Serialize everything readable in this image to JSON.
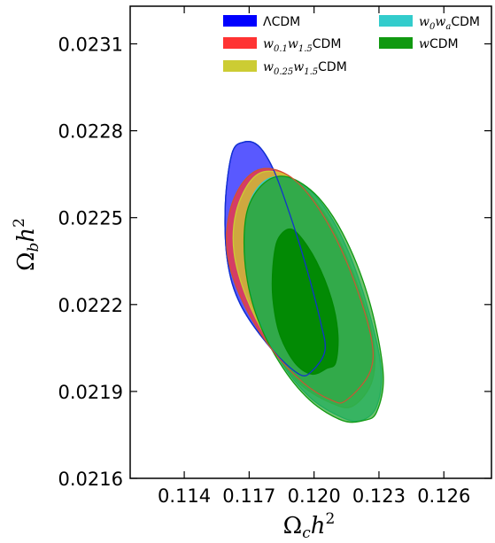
{
  "chart_data": {
    "type": "contour",
    "xlabel": {
      "main": "Ω",
      "sub": "c",
      "tail": "h",
      "sup": "2"
    },
    "ylabel": {
      "main": "Ω",
      "sub": "b",
      "tail": "h",
      "sup": "2"
    },
    "xlim": [
      0.1115,
      0.1282
    ],
    "ylim": [
      0.0216,
      0.02323
    ],
    "xticks": [
      {
        "value": 0.114,
        "label": "0.114"
      },
      {
        "value": 0.117,
        "label": "0.117"
      },
      {
        "value": 0.12,
        "label": "0.120"
      },
      {
        "value": 0.123,
        "label": "0.123"
      },
      {
        "value": 0.126,
        "label": "0.126"
      }
    ],
    "yticks": [
      {
        "value": 0.0216,
        "label": "0.0216"
      },
      {
        "value": 0.0219,
        "label": "0.0219"
      },
      {
        "value": 0.0222,
        "label": "0.0222"
      },
      {
        "value": 0.0225,
        "label": "0.0225"
      },
      {
        "value": 0.0228,
        "label": "0.0228"
      },
      {
        "value": 0.0231,
        "label": "0.0231"
      }
    ],
    "grid": false,
    "legend_location": "top-right",
    "legend": [
      {
        "key": "lcdm",
        "parts": [
          {
            "t": "ΛCDM",
            "m": false
          }
        ],
        "color": "#0000ff"
      },
      {
        "key": "w01w15",
        "parts": [
          {
            "t": "w",
            "m": true
          },
          {
            "t": "0.1",
            "m": true,
            "sub": true
          },
          {
            "t": "w",
            "m": true
          },
          {
            "t": "1.5",
            "m": true,
            "sub": true
          },
          {
            "t": "CDM",
            "m": false
          }
        ],
        "color": "#ff3333"
      },
      {
        "key": "w025w15",
        "parts": [
          {
            "t": "w",
            "m": true
          },
          {
            "t": "0.25",
            "m": true,
            "sub": true
          },
          {
            "t": "w",
            "m": true
          },
          {
            "t": "1.5",
            "m": true,
            "sub": true
          },
          {
            "t": "CDM",
            "m": false
          }
        ],
        "color": "#cccc33"
      },
      {
        "key": "w0wa",
        "parts": [
          {
            "t": "w",
            "m": true
          },
          {
            "t": "0",
            "m": true,
            "sub": true
          },
          {
            "t": "w",
            "m": true
          },
          {
            "t": "a",
            "m": true,
            "sub": true
          },
          {
            "t": "CDM",
            "m": false
          }
        ],
        "color": "#33cccc"
      },
      {
        "key": "wcdm",
        "parts": [
          {
            "t": "w",
            "m": true
          },
          {
            "t": "CDM",
            "m": false
          }
        ],
        "color": "#119911"
      }
    ],
    "series": [
      {
        "key": "lcdm",
        "name": "ΛCDM",
        "color": "#0000ff",
        "opacity": 0.65,
        "contour": [
          [
            0.1199,
            0.02197
          ],
          [
            0.1193,
            0.02196
          ],
          [
            0.118,
            0.02205
          ],
          [
            0.1166,
            0.0222
          ],
          [
            0.116,
            0.02235
          ],
          [
            0.1159,
            0.02255
          ],
          [
            0.1162,
            0.02272
          ],
          [
            0.1167,
            0.02276
          ],
          [
            0.1174,
            0.02275
          ],
          [
            0.1181,
            0.02267
          ],
          [
            0.1188,
            0.02253
          ],
          [
            0.1196,
            0.02234
          ],
          [
            0.1203,
            0.02214
          ],
          [
            0.1205,
            0.02204
          ]
        ]
      },
      {
        "key": "w01w15",
        "name": "w0.1w1.5CDM",
        "color": "#ff3333",
        "opacity": 0.75,
        "contour": [
          [
            0.1215,
            0.02187
          ],
          [
            0.1208,
            0.02187
          ],
          [
            0.1195,
            0.02193
          ],
          [
            0.118,
            0.02205
          ],
          [
            0.1167,
            0.02221
          ],
          [
            0.116,
            0.02237
          ],
          [
            0.1161,
            0.02252
          ],
          [
            0.1168,
            0.02263
          ],
          [
            0.1178,
            0.02267
          ],
          [
            0.1191,
            0.02263
          ],
          [
            0.1204,
            0.02251
          ],
          [
            0.1216,
            0.02233
          ],
          [
            0.1226,
            0.0221
          ],
          [
            0.1226,
            0.02197
          ]
        ]
      },
      {
        "key": "w025w15",
        "name": "w0.25w1.5CDM",
        "color": "#cccc33",
        "opacity": 0.75,
        "contour": [
          [
            0.1218,
            0.02185
          ],
          [
            0.1208,
            0.02186
          ],
          [
            0.1193,
            0.02193
          ],
          [
            0.118,
            0.02206
          ],
          [
            0.1169,
            0.02222
          ],
          [
            0.1163,
            0.02238
          ],
          [
            0.1164,
            0.02252
          ],
          [
            0.1171,
            0.02263
          ],
          [
            0.118,
            0.02266
          ],
          [
            0.1193,
            0.02262
          ],
          [
            0.1206,
            0.0225
          ],
          [
            0.1218,
            0.02231
          ],
          [
            0.1227,
            0.02209
          ],
          [
            0.1227,
            0.02194
          ]
        ]
      },
      {
        "key": "w0wa",
        "name": "w0waCDM",
        "color": "#33cccc",
        "opacity": 0.7,
        "contour": [
          [
            0.1222,
            0.0218
          ],
          [
            0.1213,
            0.02181
          ],
          [
            0.1198,
            0.02188
          ],
          [
            0.1184,
            0.02201
          ],
          [
            0.1173,
            0.02218
          ],
          [
            0.1168,
            0.02235
          ],
          [
            0.1169,
            0.02252
          ],
          [
            0.1176,
            0.02262
          ],
          [
            0.1187,
            0.02264
          ],
          [
            0.12,
            0.02258
          ],
          [
            0.1213,
            0.02243
          ],
          [
            0.1224,
            0.02221
          ],
          [
            0.1231,
            0.02198
          ],
          [
            0.1229,
            0.02185
          ]
        ]
      },
      {
        "key": "wcdm",
        "name": "wCDM",
        "color": "#119911",
        "opacity": 0.6,
        "contour": [
          [
            0.1223,
            0.0218
          ],
          [
            0.1213,
            0.0218
          ],
          [
            0.1198,
            0.02187
          ],
          [
            0.1184,
            0.022
          ],
          [
            0.1173,
            0.02217
          ],
          [
            0.1168,
            0.02235
          ],
          [
            0.1169,
            0.02252
          ],
          [
            0.1177,
            0.02262
          ],
          [
            0.1188,
            0.02264
          ],
          [
            0.1202,
            0.02257
          ],
          [
            0.1215,
            0.02242
          ],
          [
            0.1226,
            0.0222
          ],
          [
            0.1232,
            0.02196
          ],
          [
            0.1229,
            0.02183
          ]
        ]
      },
      {
        "key": "wcdm-inner",
        "name": "",
        "color": "#008800",
        "opacity": 0.95,
        "contour": [
          [
            0.1206,
            0.02198
          ],
          [
            0.1199,
            0.02196
          ],
          [
            0.1191,
            0.022
          ],
          [
            0.1184,
            0.0221
          ],
          [
            0.1181,
            0.02222
          ],
          [
            0.1181,
            0.02233
          ],
          [
            0.1183,
            0.02242
          ],
          [
            0.1188,
            0.02246
          ],
          [
            0.1193,
            0.02244
          ],
          [
            0.1201,
            0.02235
          ],
          [
            0.1208,
            0.02222
          ],
          [
            0.1211,
            0.0221
          ],
          [
            0.121,
            0.022
          ]
        ]
      }
    ]
  }
}
